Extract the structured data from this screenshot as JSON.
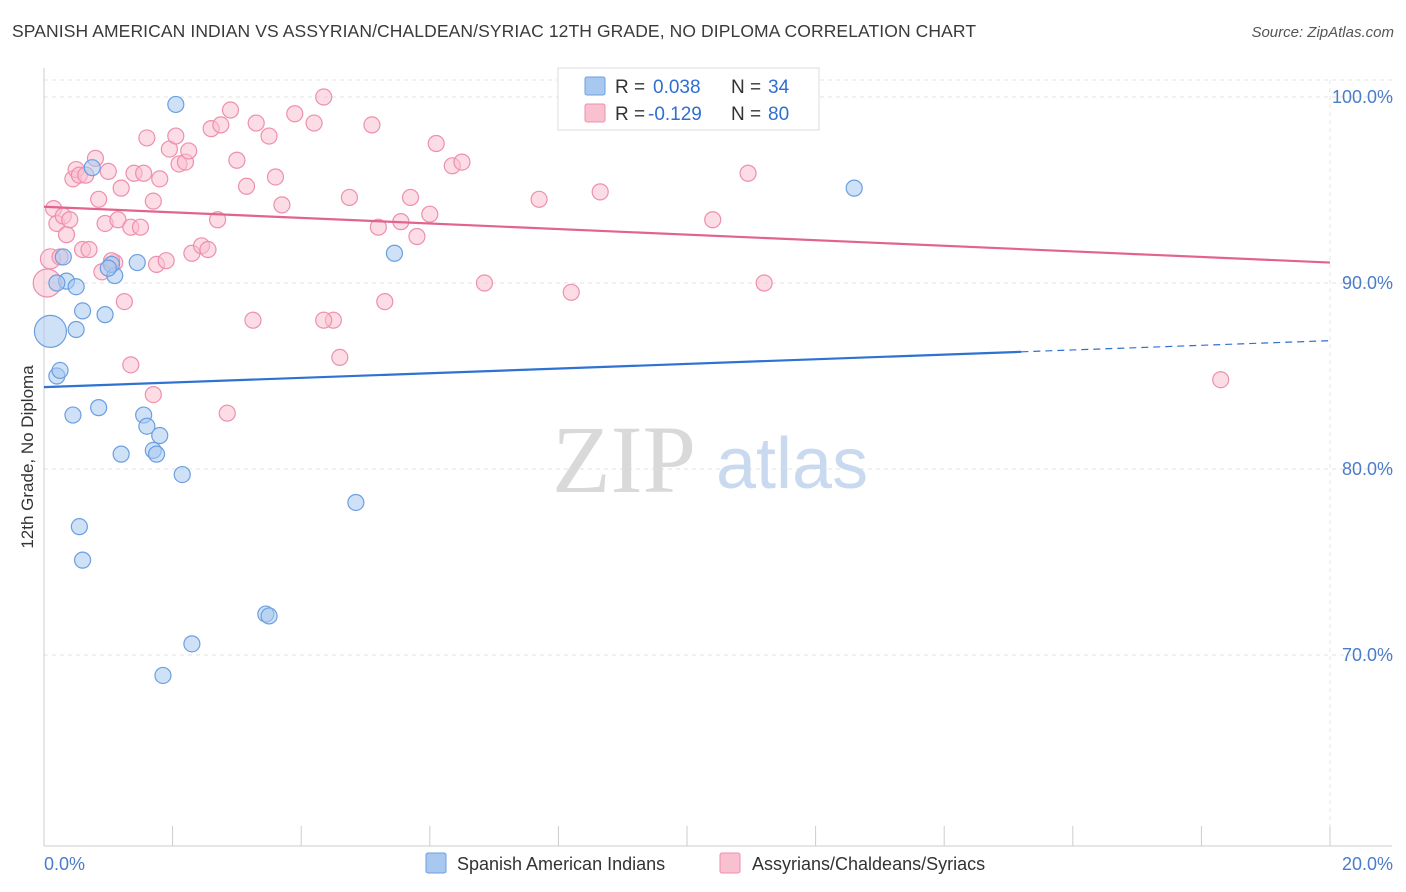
{
  "title": "SPANISH AMERICAN INDIAN VS ASSYRIAN/CHALDEAN/SYRIAC 12TH GRADE, NO DIPLOMA CORRELATION CHART",
  "source": "Source: ZipAtlas.com",
  "watermark": {
    "zip": "ZIP",
    "atlas": "atlas"
  },
  "legend": {
    "r_label": "R =",
    "n_label": "N =",
    "rows": [
      {
        "r": "0.038",
        "n": "34",
        "color": "#a8c8f0",
        "stroke": "#6b9fe0"
      },
      {
        "r": "-0.129",
        "n": "80",
        "color": "#f9c0d0",
        "stroke": "#ee8fae"
      }
    ]
  },
  "bottom_legend": [
    "Spanish American Indians",
    "Assyrians/Chaldeans/Syriacs"
  ],
  "chart_data": {
    "type": "scatter",
    "title": "SPANISH AMERICAN INDIAN VS ASSYRIAN/CHALDEAN/SYRIAC 12TH GRADE, NO DIPLOMA CORRELATION CHART",
    "xlabel": "",
    "ylabel": "12th Grade, No Diploma",
    "xlim": [
      0,
      20
    ],
    "ylim": [
      60,
      102
    ],
    "x_tick_labels": [
      "0.0%",
      "20.0%"
    ],
    "y_ticks": [
      70,
      80,
      90,
      100
    ],
    "y_tick_labels": [
      "70.0%",
      "80.0%",
      "90.0%",
      "100.0%"
    ],
    "grid": true,
    "series": [
      {
        "name": "Spanish American Indians",
        "color": "#a8c8f0",
        "stroke": "#6b9fe0",
        "line_color": "#2e72d2",
        "trend": {
          "x0": 0,
          "y0": 84.4,
          "x1": 15.2,
          "y1": 86.3,
          "dash_to_x": 20,
          "dash_to_y": 86.9
        },
        "points": [
          [
            0.1,
            87.4,
            16
          ],
          [
            0.3,
            91.4,
            8
          ],
          [
            0.35,
            90.1,
            8
          ],
          [
            0.2,
            90.0,
            8
          ],
          [
            0.5,
            89.8,
            8
          ],
          [
            0.6,
            88.5,
            8
          ],
          [
            0.5,
            87.5,
            8
          ],
          [
            0.95,
            88.3,
            8
          ],
          [
            1.1,
            90.4,
            8
          ],
          [
            1.05,
            91.0,
            8
          ],
          [
            1.45,
            91.1,
            8
          ],
          [
            0.75,
            96.2,
            8
          ],
          [
            2.05,
            99.6,
            8
          ],
          [
            5.45,
            91.6,
            8
          ],
          [
            12.6,
            95.1,
            8
          ],
          [
            0.2,
            85.0,
            8
          ],
          [
            0.25,
            85.3,
            8
          ],
          [
            0.45,
            82.9,
            8
          ],
          [
            0.85,
            83.3,
            8
          ],
          [
            1.55,
            82.9,
            8
          ],
          [
            1.6,
            82.3,
            8
          ],
          [
            1.8,
            81.8,
            8
          ],
          [
            1.7,
            81.0,
            8
          ],
          [
            1.75,
            80.8,
            8
          ],
          [
            1.2,
            80.8,
            8
          ],
          [
            2.15,
            79.7,
            8
          ],
          [
            4.85,
            78.2,
            8
          ],
          [
            0.55,
            76.9,
            8
          ],
          [
            0.6,
            75.1,
            8
          ],
          [
            3.45,
            72.2,
            8
          ],
          [
            3.5,
            72.1,
            8
          ],
          [
            2.3,
            70.6,
            8
          ],
          [
            1.85,
            68.9,
            8
          ],
          [
            1.0,
            90.8,
            8
          ]
        ]
      },
      {
        "name": "Assyrians/Chaldeans/Syriacs",
        "color": "#f9c0d0",
        "stroke": "#ee8fae",
        "line_color": "#e0648e",
        "trend": {
          "x0": 0,
          "y0": 94.1,
          "x1": 20,
          "y1": 91.1
        },
        "points": [
          [
            0.05,
            90.0,
            14
          ],
          [
            0.1,
            91.3,
            10
          ],
          [
            0.15,
            94.0,
            8
          ],
          [
            0.2,
            93.2,
            8
          ],
          [
            0.3,
            93.6,
            8
          ],
          [
            0.35,
            92.6,
            8
          ],
          [
            0.4,
            93.4,
            8
          ],
          [
            0.45,
            95.6,
            8
          ],
          [
            0.5,
            96.1,
            8
          ],
          [
            0.55,
            95.8,
            8
          ],
          [
            0.6,
            91.8,
            8
          ],
          [
            0.7,
            91.8,
            8
          ],
          [
            0.8,
            96.7,
            8
          ],
          [
            0.85,
            94.5,
            8
          ],
          [
            0.9,
            90.6,
            8
          ],
          [
            0.95,
            93.2,
            8
          ],
          [
            1.0,
            96.0,
            8
          ],
          [
            1.1,
            91.1,
            8
          ],
          [
            1.15,
            93.4,
            8
          ],
          [
            1.2,
            95.1,
            8
          ],
          [
            1.25,
            89.0,
            8
          ],
          [
            1.35,
            93.0,
            8
          ],
          [
            1.4,
            95.9,
            8
          ],
          [
            1.5,
            93.0,
            8
          ],
          [
            1.55,
            95.9,
            8
          ],
          [
            1.6,
            97.8,
            8
          ],
          [
            1.7,
            94.4,
            8
          ],
          [
            1.75,
            91.0,
            8
          ],
          [
            1.8,
            95.6,
            8
          ],
          [
            1.9,
            91.2,
            8
          ],
          [
            1.95,
            97.2,
            8
          ],
          [
            2.05,
            97.9,
            8
          ],
          [
            2.1,
            96.4,
            8
          ],
          [
            2.2,
            96.5,
            8
          ],
          [
            2.3,
            91.6,
            8
          ],
          [
            2.45,
            92.0,
            8
          ],
          [
            2.55,
            91.8,
            8
          ],
          [
            2.6,
            98.3,
            8
          ],
          [
            2.7,
            93.4,
            8
          ],
          [
            2.75,
            98.5,
            8
          ],
          [
            2.9,
            99.3,
            8
          ],
          [
            3.0,
            96.6,
            8
          ],
          [
            3.15,
            95.2,
            8
          ],
          [
            3.3,
            98.6,
            8
          ],
          [
            3.5,
            97.9,
            8
          ],
          [
            3.6,
            95.7,
            8
          ],
          [
            3.7,
            94.2,
            8
          ],
          [
            3.9,
            99.1,
            8
          ],
          [
            4.2,
            98.6,
            8
          ],
          [
            4.35,
            100.0,
            8
          ],
          [
            4.5,
            88.0,
            8
          ],
          [
            4.6,
            86.0,
            8
          ],
          [
            4.75,
            94.6,
            8
          ],
          [
            5.1,
            98.5,
            8
          ],
          [
            5.2,
            93.0,
            8
          ],
          [
            5.3,
            89.0,
            8
          ],
          [
            5.55,
            93.3,
            8
          ],
          [
            5.7,
            94.6,
            8
          ],
          [
            5.8,
            92.5,
            8
          ],
          [
            6.0,
            93.7,
            8
          ],
          [
            6.1,
            97.5,
            8
          ],
          [
            6.35,
            96.3,
            8
          ],
          [
            6.5,
            96.5,
            8
          ],
          [
            6.85,
            90.0,
            8
          ],
          [
            7.7,
            94.5,
            8
          ],
          [
            8.2,
            89.5,
            8
          ],
          [
            8.65,
            94.9,
            8
          ],
          [
            10.4,
            93.4,
            8
          ],
          [
            10.95,
            95.9,
            8
          ],
          [
            11.2,
            90.0,
            8
          ],
          [
            18.3,
            84.8,
            8
          ],
          [
            1.35,
            85.6,
            8
          ],
          [
            1.7,
            84.0,
            8
          ],
          [
            2.85,
            83.0,
            8
          ],
          [
            4.35,
            88.0,
            8
          ],
          [
            3.25,
            88.0,
            8
          ],
          [
            1.05,
            91.2,
            8
          ],
          [
            0.25,
            91.4,
            8
          ],
          [
            0.65,
            95.8,
            8
          ],
          [
            2.25,
            97.1,
            8
          ]
        ]
      }
    ]
  }
}
